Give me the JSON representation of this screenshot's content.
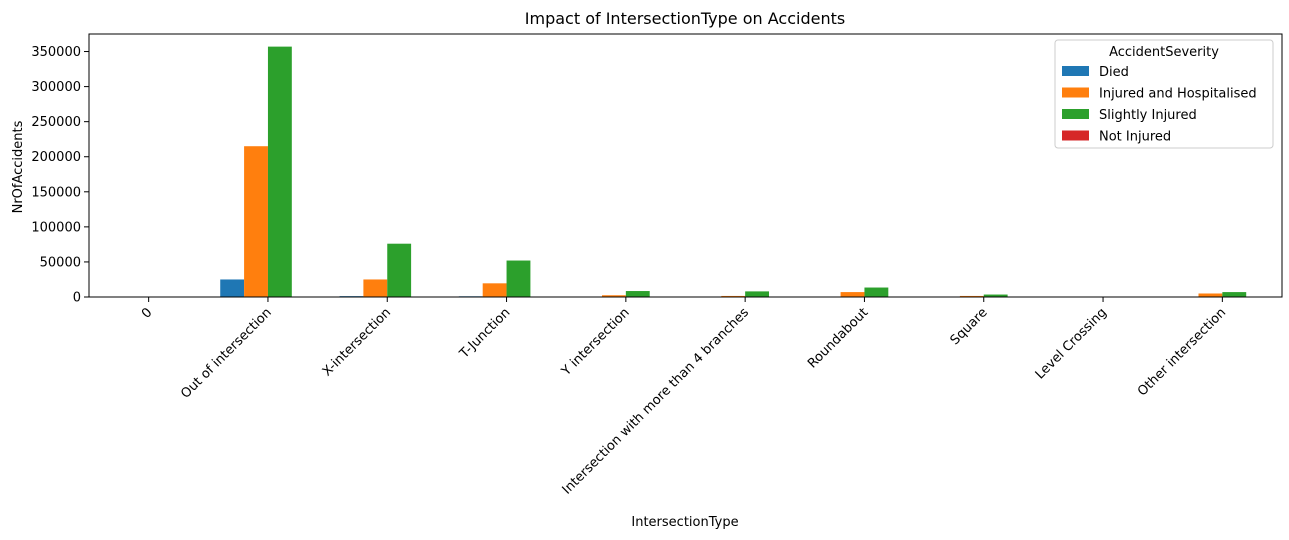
{
  "chart_data": {
    "type": "bar",
    "title": "Impact of IntersectionType on Accidents",
    "xlabel": "IntersectionType",
    "ylabel": "NrOfAccidents",
    "categories": [
      "0",
      "Out of intersection",
      "X-intersection",
      "T-Junction",
      "Y intersection",
      "Intersection with more than 4 branches",
      "Roundabout",
      "Square",
      "Level Crossing",
      "Other intersection"
    ],
    "series": [
      {
        "name": "Died",
        "color": "#1f77b4",
        "values": [
          0,
          25000,
          1200,
          1000,
          100,
          60,
          200,
          50,
          30,
          150
        ]
      },
      {
        "name": "Injured and Hospitalised",
        "color": "#ff7f0e",
        "values": [
          0,
          215000,
          25000,
          19500,
          2500,
          1500,
          7000,
          1500,
          300,
          5000
        ]
      },
      {
        "name": "Slightly Injured",
        "color": "#2ca02c",
        "values": [
          0,
          357000,
          76000,
          52000,
          8500,
          8000,
          13500,
          3500,
          200,
          7000
        ]
      },
      {
        "name": "Not Injured",
        "color": "#d62728",
        "values": [
          0,
          0,
          0,
          0,
          0,
          0,
          0,
          0,
          0,
          0
        ]
      }
    ],
    "ylim": [
      0,
      375000
    ],
    "yticks": [
      0,
      50000,
      100000,
      150000,
      200000,
      250000,
      300000,
      350000
    ],
    "legend": {
      "title": "AccidentSeverity",
      "placement": "top-right"
    },
    "grid": false
  }
}
